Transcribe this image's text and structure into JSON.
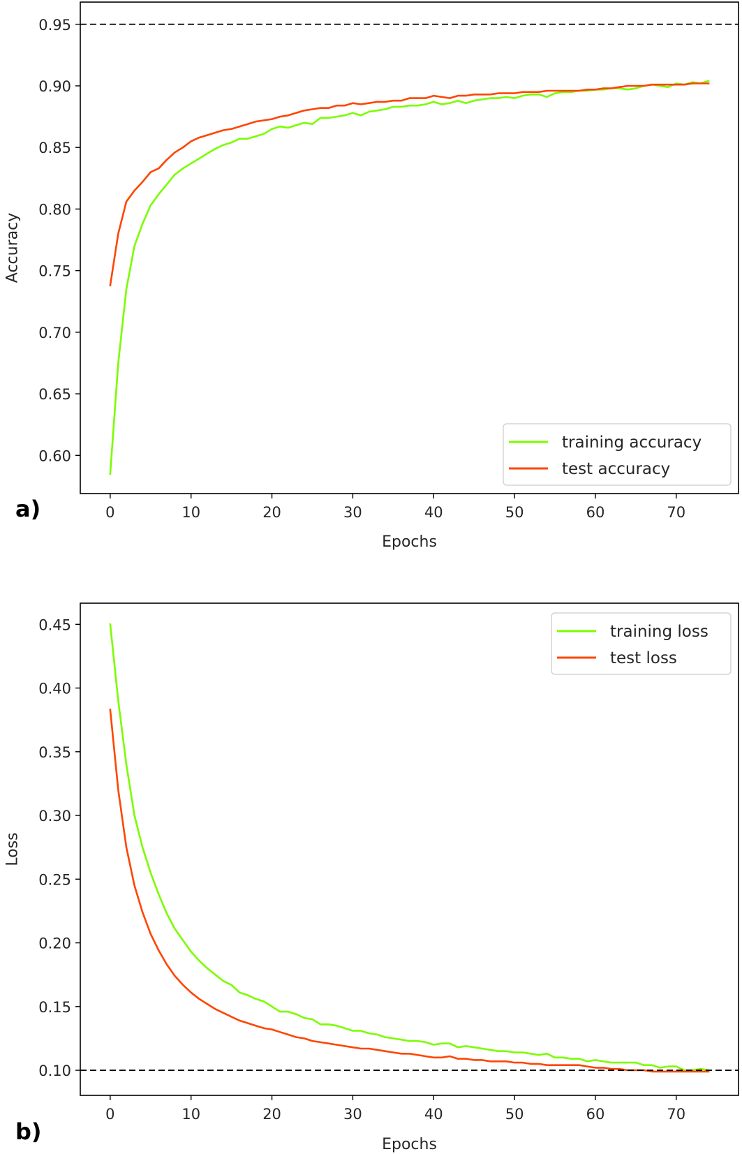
{
  "chart_data": [
    {
      "type": "line",
      "panel_label": "a)",
      "title": "",
      "xlabel": "Epochs",
      "ylabel": "Accuracy",
      "xlim": [
        -3.7,
        77.7
      ],
      "ylim": [
        0.569,
        0.968
      ],
      "xticks": [
        0,
        10,
        20,
        30,
        40,
        50,
        60,
        70
      ],
      "xtick_labels": [
        "0",
        "10",
        "20",
        "30",
        "40",
        "50",
        "60",
        "70"
      ],
      "yticks": [
        0.6,
        0.65,
        0.7,
        0.75,
        0.8,
        0.85,
        0.9,
        0.95
      ],
      "ytick_labels": [
        "0.60",
        "0.65",
        "0.70",
        "0.75",
        "0.80",
        "0.85",
        "0.90",
        "0.95"
      ],
      "grid": false,
      "legend_position": "lower-right",
      "reference_line": {
        "y": 0.95,
        "style": "dashed",
        "color": "#000000"
      },
      "x": [
        0,
        1,
        2,
        3,
        4,
        5,
        6,
        7,
        8,
        9,
        10,
        11,
        12,
        13,
        14,
        15,
        16,
        17,
        18,
        19,
        20,
        21,
        22,
        23,
        24,
        25,
        26,
        27,
        28,
        29,
        30,
        31,
        32,
        33,
        34,
        35,
        36,
        37,
        38,
        39,
        40,
        41,
        42,
        43,
        44,
        45,
        46,
        47,
        48,
        49,
        50,
        51,
        52,
        53,
        54,
        55,
        56,
        57,
        58,
        59,
        60,
        61,
        62,
        63,
        64,
        65,
        66,
        67,
        68,
        69,
        70,
        71,
        72,
        73,
        74
      ],
      "series": [
        {
          "name": "training accuracy",
          "color": "#7cfc00",
          "values": [
            0.585,
            0.675,
            0.735,
            0.77,
            0.788,
            0.803,
            0.812,
            0.82,
            0.828,
            0.833,
            0.837,
            0.841,
            0.845,
            0.849,
            0.852,
            0.854,
            0.857,
            0.857,
            0.859,
            0.861,
            0.865,
            0.867,
            0.866,
            0.868,
            0.87,
            0.869,
            0.874,
            0.874,
            0.875,
            0.876,
            0.878,
            0.876,
            0.879,
            0.88,
            0.881,
            0.883,
            0.883,
            0.884,
            0.884,
            0.885,
            0.887,
            0.885,
            0.886,
            0.888,
            0.886,
            0.888,
            0.889,
            0.89,
            0.89,
            0.891,
            0.89,
            0.892,
            0.893,
            0.893,
            0.891,
            0.894,
            0.895,
            0.895,
            0.896,
            0.896,
            0.897,
            0.897,
            0.898,
            0.898,
            0.897,
            0.898,
            0.9,
            0.901,
            0.9,
            0.899,
            0.902,
            0.901,
            0.903,
            0.902,
            0.904
          ]
        },
        {
          "name": "test accuracy",
          "color": "#ff4500",
          "values": [
            0.738,
            0.78,
            0.806,
            0.815,
            0.822,
            0.83,
            0.833,
            0.84,
            0.846,
            0.85,
            0.855,
            0.858,
            0.86,
            0.862,
            0.864,
            0.865,
            0.867,
            0.869,
            0.871,
            0.872,
            0.873,
            0.875,
            0.876,
            0.878,
            0.88,
            0.881,
            0.882,
            0.882,
            0.884,
            0.884,
            0.886,
            0.885,
            0.886,
            0.887,
            0.887,
            0.888,
            0.888,
            0.89,
            0.89,
            0.89,
            0.892,
            0.891,
            0.89,
            0.892,
            0.892,
            0.893,
            0.893,
            0.893,
            0.894,
            0.894,
            0.894,
            0.895,
            0.895,
            0.895,
            0.896,
            0.896,
            0.896,
            0.896,
            0.896,
            0.897,
            0.897,
            0.898,
            0.898,
            0.899,
            0.9,
            0.9,
            0.9,
            0.901,
            0.901,
            0.901,
            0.901,
            0.901,
            0.902,
            0.902,
            0.902
          ]
        }
      ]
    },
    {
      "type": "line",
      "panel_label": "b)",
      "title": "",
      "xlabel": "Epochs",
      "ylabel": "Loss",
      "xlim": [
        -3.7,
        77.7
      ],
      "ylim": [
        0.0803,
        0.4666
      ],
      "xticks": [
        0,
        10,
        20,
        30,
        40,
        50,
        60,
        70
      ],
      "xtick_labels": [
        "0",
        "10",
        "20",
        "30",
        "40",
        "50",
        "60",
        "70"
      ],
      "yticks": [
        0.1,
        0.15,
        0.2,
        0.25,
        0.3,
        0.35,
        0.4,
        0.45
      ],
      "ytick_labels": [
        "0.10",
        "0.15",
        "0.20",
        "0.25",
        "0.30",
        "0.35",
        "0.40",
        "0.45"
      ],
      "grid": false,
      "legend_position": "upper-right",
      "reference_line": {
        "y": 0.1,
        "style": "dashed",
        "color": "#000000"
      },
      "x": [
        0,
        1,
        2,
        3,
        4,
        5,
        6,
        7,
        8,
        9,
        10,
        11,
        12,
        13,
        14,
        15,
        16,
        17,
        18,
        19,
        20,
        21,
        22,
        23,
        24,
        25,
        26,
        27,
        28,
        29,
        30,
        31,
        32,
        33,
        34,
        35,
        36,
        37,
        38,
        39,
        40,
        41,
        42,
        43,
        44,
        45,
        46,
        47,
        48,
        49,
        50,
        51,
        52,
        53,
        54,
        55,
        56,
        57,
        58,
        59,
        60,
        61,
        62,
        63,
        64,
        65,
        66,
        67,
        68,
        69,
        70,
        71,
        72,
        73,
        74
      ],
      "series": [
        {
          "name": "training loss",
          "color": "#7cfc00",
          "values": [
            0.45,
            0.39,
            0.34,
            0.3,
            0.275,
            0.255,
            0.238,
            0.223,
            0.211,
            0.202,
            0.193,
            0.186,
            0.18,
            0.175,
            0.17,
            0.167,
            0.161,
            0.159,
            0.156,
            0.154,
            0.15,
            0.146,
            0.146,
            0.144,
            0.141,
            0.14,
            0.136,
            0.136,
            0.135,
            0.133,
            0.131,
            0.131,
            0.129,
            0.128,
            0.126,
            0.125,
            0.124,
            0.123,
            0.123,
            0.122,
            0.12,
            0.121,
            0.121,
            0.118,
            0.119,
            0.118,
            0.117,
            0.116,
            0.115,
            0.115,
            0.114,
            0.114,
            0.113,
            0.112,
            0.113,
            0.11,
            0.11,
            0.109,
            0.109,
            0.107,
            0.108,
            0.107,
            0.106,
            0.106,
            0.106,
            0.106,
            0.104,
            0.104,
            0.102,
            0.103,
            0.103,
            0.1,
            0.1,
            0.101,
            0.1
          ]
        },
        {
          "name": "test loss",
          "color": "#ff4500",
          "values": [
            0.383,
            0.32,
            0.275,
            0.245,
            0.224,
            0.207,
            0.194,
            0.183,
            0.174,
            0.167,
            0.161,
            0.156,
            0.152,
            0.148,
            0.145,
            0.142,
            0.139,
            0.137,
            0.135,
            0.133,
            0.132,
            0.13,
            0.128,
            0.126,
            0.125,
            0.123,
            0.122,
            0.121,
            0.12,
            0.119,
            0.118,
            0.117,
            0.117,
            0.116,
            0.115,
            0.114,
            0.113,
            0.113,
            0.112,
            0.111,
            0.11,
            0.11,
            0.111,
            0.109,
            0.109,
            0.108,
            0.108,
            0.107,
            0.107,
            0.107,
            0.106,
            0.106,
            0.105,
            0.105,
            0.104,
            0.104,
            0.104,
            0.104,
            0.104,
            0.103,
            0.102,
            0.102,
            0.101,
            0.101,
            0.1,
            0.1,
            0.1,
            0.099,
            0.099,
            0.099,
            0.099,
            0.099,
            0.099,
            0.099,
            0.099
          ]
        }
      ]
    }
  ]
}
